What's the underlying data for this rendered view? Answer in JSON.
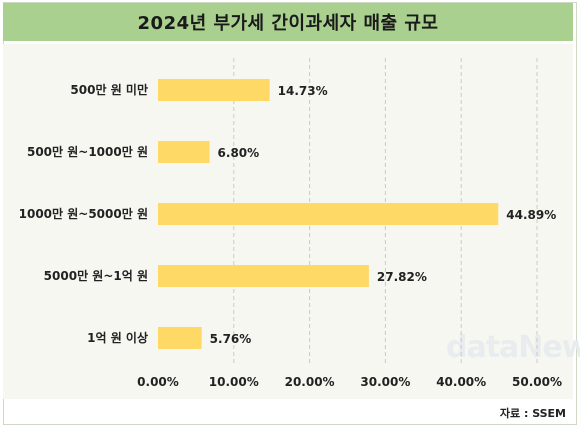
{
  "header": {
    "title": "2024년 부가세 간이과세자 매출 규모"
  },
  "source": "자료 : SSEM",
  "watermark": "dataNews",
  "colors": {
    "bar": "#ffd966",
    "title_bg": "#a9d08e",
    "plot_bg": "#f6f7f1"
  },
  "chart_data": {
    "type": "bar",
    "orientation": "horizontal",
    "title": "2024년 부가세 간이과세자 매출 규모",
    "categories": [
      "500만 원 미만",
      "500만 원~1000만 원",
      "1000만 원~5000만 원",
      "5000만 원~1억 원",
      "1억 원 이상"
    ],
    "values": [
      14.73,
      6.8,
      44.89,
      27.82,
      5.76
    ],
    "value_labels": [
      "14.73%",
      "6.80%",
      "44.89%",
      "27.82%",
      "5.76%"
    ],
    "xlim": [
      0,
      50
    ],
    "x_ticks": [
      "0.00%",
      "10.00%",
      "20.00%",
      "30.00%",
      "40.00%",
      "50.00%"
    ],
    "grid": "vertical dashed",
    "legend": "none"
  }
}
